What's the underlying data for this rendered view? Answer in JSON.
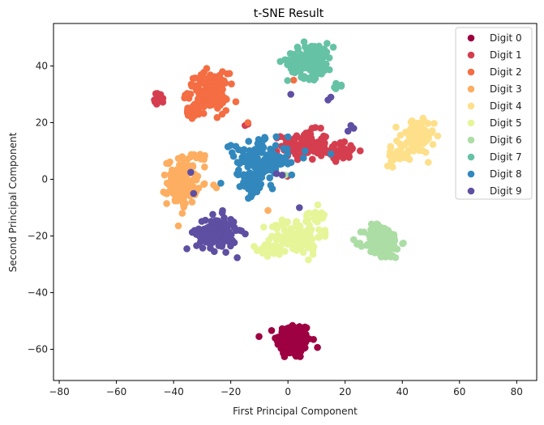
{
  "chart_data": {
    "type": "scatter",
    "title": "t-SNE Result",
    "xlabel": "First Principal Component",
    "ylabel": "Second Principal Component",
    "xlim": [
      -82,
      87
    ],
    "ylim": [
      -71,
      55
    ],
    "xticks": [
      -80,
      -60,
      -40,
      -20,
      0,
      20,
      40,
      60,
      80
    ],
    "yticks": [
      -60,
      -40,
      -20,
      0,
      20,
      40
    ],
    "legend_position": "top-right",
    "grid": false,
    "series": [
      {
        "name": "Digit 0",
        "color": "#9e0142",
        "clusters": [
          {
            "cx": 2,
            "cy": -57,
            "sx": 3.0,
            "sy": 3.2,
            "n": 170
          }
        ],
        "points": []
      },
      {
        "name": "Digit 1",
        "color": "#d53e4f",
        "clusters": [
          {
            "cx": 6,
            "cy": 12,
            "sx": 4.0,
            "sy": 2.6,
            "n": 110
          },
          {
            "cx": 19,
            "cy": 10,
            "sx": 3.0,
            "sy": 1.6,
            "n": 45
          },
          {
            "cx": -45,
            "cy": 28.5,
            "sx": 0.8,
            "sy": 1.0,
            "n": 18
          }
        ],
        "points": [
          [
            -14,
            19.5
          ],
          [
            -15,
            19
          ]
        ]
      },
      {
        "name": "Digit 2",
        "color": "#f46d43",
        "clusters": [
          {
            "cx": -28,
            "cy": 31,
            "sx": 3.5,
            "sy": 3.2,
            "n": 130
          },
          {
            "cx": -33,
            "cy": 23.5,
            "sx": 2.0,
            "sy": 1.2,
            "n": 25
          }
        ],
        "points": [
          [
            -23,
            23
          ],
          [
            -14,
            20
          ],
          [
            2,
            35
          ]
        ]
      },
      {
        "name": "Digit 3",
        "color": "#fdae61",
        "clusters": [
          {
            "cx": -37,
            "cy": -1,
            "sx": 2.6,
            "sy": 4.0,
            "n": 150
          },
          {
            "cx": -31,
            "cy": 8,
            "sx": 1.5,
            "sy": 0.5,
            "n": 8
          }
        ],
        "points": [
          [
            -26,
            -2
          ],
          [
            -25,
            -3
          ],
          [
            -37,
            8
          ],
          [
            -7,
            -11
          ]
        ]
      },
      {
        "name": "Digit 4",
        "color": "#fee08b",
        "clusters": [
          {
            "cx": 45,
            "cy": 15,
            "sx": 3.0,
            "sy": 3.0,
            "n": 110
          },
          {
            "cx": 38,
            "cy": 8,
            "sx": 2.0,
            "sy": 1.5,
            "n": 30
          }
        ],
        "points": []
      },
      {
        "name": "Digit 5",
        "color": "#e6f598",
        "clusters": [
          {
            "cx": 3,
            "cy": -20,
            "sx": 4.5,
            "sy": 3.2,
            "n": 110
          },
          {
            "cx": -5,
            "cy": -25,
            "sx": 3.0,
            "sy": 1.0,
            "n": 30
          },
          {
            "cx": 10,
            "cy": -13,
            "sx": 2.0,
            "sy": 1.2,
            "n": 20
          }
        ],
        "points": []
      },
      {
        "name": "Digit 6",
        "color": "#abdda4",
        "clusters": [
          {
            "cx": 33,
            "cy": -22,
            "sx": 3.2,
            "sy": 3.0,
            "n": 130
          }
        ],
        "points": [
          [
            -1,
            1.5
          ]
        ]
      },
      {
        "name": "Digit 7",
        "color": "#66c2a5",
        "clusters": [
          {
            "cx": 8,
            "cy": 42,
            "sx": 4.0,
            "sy": 3.0,
            "n": 140
          },
          {
            "cx": 17,
            "cy": 33,
            "sx": 1.0,
            "sy": 0.5,
            "n": 6
          }
        ],
        "points": []
      },
      {
        "name": "Digit 8",
        "color": "#3288bd",
        "clusters": [
          {
            "cx": -9,
            "cy": 6,
            "sx": 4.5,
            "sy": 3.5,
            "n": 150
          },
          {
            "cx": -13,
            "cy": -2,
            "sx": 2.0,
            "sy": 2.0,
            "n": 30
          }
        ],
        "points": [
          [
            -21,
            11.5
          ],
          [
            -20,
            12
          ],
          [
            0,
            15
          ],
          [
            15,
            9
          ],
          [
            6,
            10
          ],
          [
            -3,
            8
          ]
        ]
      },
      {
        "name": "Digit 9",
        "color": "#5e4fa2",
        "clusters": [
          {
            "cx": -25,
            "cy": -19,
            "sx": 3.5,
            "sy": 3.0,
            "n": 140
          }
        ],
        "points": [
          [
            21,
            17
          ],
          [
            23,
            18
          ],
          [
            22,
            19
          ],
          [
            14,
            28
          ],
          [
            15,
            29
          ],
          [
            1,
            30
          ],
          [
            -34,
            2.5
          ],
          [
            -33,
            -5
          ],
          [
            4,
            -10
          ],
          [
            -4,
            2
          ],
          [
            -2,
            1.5
          ]
        ]
      }
    ]
  }
}
